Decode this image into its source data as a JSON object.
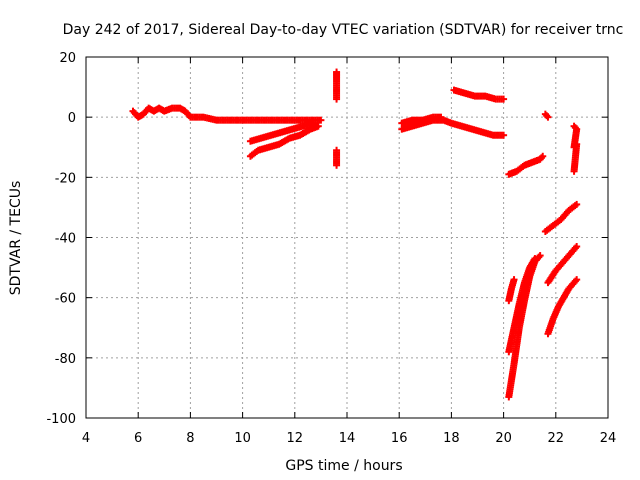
{
  "chart_data": {
    "type": "scatter",
    "title": "Day 242 of 2017, Sidereal Day-to-day VTEC variation (SDTVAR) for receiver trnc",
    "xlabel": "GPS time / hours",
    "ylabel": "SDTVAR / TECUs",
    "xlim": [
      4,
      24
    ],
    "ylim": [
      -100,
      20
    ],
    "xticks": [
      "4",
      "6",
      "8",
      "10",
      "12",
      "14",
      "16",
      "18",
      "20",
      "22",
      "24"
    ],
    "yticks": [
      "20",
      "0",
      "-20",
      "-40",
      "-60",
      "-80",
      "-100"
    ],
    "grid": true,
    "marker": "plus",
    "color": "#ff0000",
    "series": [
      {
        "points": [
          [
            5.8,
            2
          ],
          [
            6.0,
            0
          ],
          [
            6.2,
            1
          ],
          [
            6.4,
            3
          ],
          [
            6.6,
            2
          ],
          [
            6.8,
            3
          ],
          [
            7.0,
            2
          ],
          [
            7.3,
            3
          ],
          [
            7.6,
            3
          ],
          [
            7.8,
            2
          ],
          [
            8.0,
            0
          ],
          [
            8.5,
            0
          ],
          [
            9.0,
            -1
          ],
          [
            9.5,
            -1
          ],
          [
            10.0,
            -1
          ],
          [
            10.5,
            -1
          ],
          [
            11.0,
            -1
          ],
          [
            11.5,
            -1
          ],
          [
            12.0,
            -1
          ],
          [
            12.5,
            -1
          ],
          [
            13.0,
            -1
          ]
        ]
      },
      {
        "points": [
          [
            10.3,
            -13
          ],
          [
            10.6,
            -11
          ],
          [
            11.0,
            -10
          ],
          [
            11.4,
            -9
          ],
          [
            11.8,
            -7
          ],
          [
            12.2,
            -6
          ],
          [
            12.6,
            -4
          ],
          [
            12.9,
            -3
          ]
        ]
      },
      {
        "points": [
          [
            10.3,
            -8
          ],
          [
            10.7,
            -7
          ],
          [
            11.1,
            -6
          ],
          [
            11.5,
            -5
          ],
          [
            11.9,
            -4
          ],
          [
            12.3,
            -3
          ],
          [
            12.7,
            -2
          ]
        ]
      },
      {
        "points": [
          [
            13.6,
            15
          ],
          [
            13.6,
            13
          ],
          [
            13.6,
            6
          ],
          [
            13.6,
            -11
          ],
          [
            13.6,
            -16
          ]
        ]
      },
      {
        "points": [
          [
            16.1,
            -4
          ],
          [
            16.5,
            -3
          ],
          [
            16.9,
            -2
          ],
          [
            17.3,
            -1
          ],
          [
            17.7,
            -1
          ],
          [
            18.0,
            -2
          ],
          [
            18.4,
            -3
          ],
          [
            18.8,
            -4
          ],
          [
            19.2,
            -5
          ],
          [
            19.6,
            -6
          ],
          [
            20.0,
            -6
          ]
        ]
      },
      {
        "points": [
          [
            16.1,
            -2
          ],
          [
            16.5,
            -1
          ],
          [
            16.9,
            -1
          ],
          [
            17.3,
            0
          ],
          [
            17.6,
            0
          ]
        ]
      },
      {
        "points": [
          [
            18.1,
            9
          ],
          [
            18.5,
            8
          ],
          [
            18.9,
            7
          ],
          [
            19.3,
            7
          ],
          [
            19.7,
            6
          ],
          [
            20.0,
            6
          ]
        ]
      },
      {
        "points": [
          [
            20.2,
            -19
          ],
          [
            20.5,
            -18
          ],
          [
            20.8,
            -16
          ],
          [
            21.1,
            -15
          ],
          [
            21.4,
            -14
          ],
          [
            21.5,
            -13
          ]
        ]
      },
      {
        "points": [
          [
            21.6,
            1
          ],
          [
            21.7,
            0
          ]
        ]
      },
      {
        "points": [
          [
            22.7,
            -3
          ],
          [
            22.8,
            -4
          ],
          [
            22.7,
            -10
          ],
          [
            22.8,
            -9
          ],
          [
            22.7,
            -18
          ]
        ]
      },
      {
        "points": [
          [
            20.2,
            -61
          ],
          [
            20.3,
            -57
          ],
          [
            20.4,
            -54
          ]
        ]
      },
      {
        "points": [
          [
            20.2,
            -78
          ],
          [
            20.4,
            -70
          ],
          [
            20.6,
            -62
          ],
          [
            20.8,
            -55
          ],
          [
            21.0,
            -50
          ],
          [
            21.2,
            -47
          ]
        ]
      },
      {
        "points": [
          [
            20.2,
            -93
          ],
          [
            20.4,
            -82
          ],
          [
            20.6,
            -70
          ],
          [
            20.8,
            -61
          ],
          [
            21.0,
            -53
          ],
          [
            21.2,
            -48
          ],
          [
            21.4,
            -46
          ]
        ]
      },
      {
        "points": [
          [
            21.6,
            -38
          ],
          [
            21.9,
            -36
          ],
          [
            22.2,
            -34
          ],
          [
            22.5,
            -31
          ],
          [
            22.8,
            -29
          ]
        ]
      },
      {
        "points": [
          [
            21.7,
            -55
          ],
          [
            22.0,
            -51
          ],
          [
            22.3,
            -48
          ],
          [
            22.6,
            -45
          ],
          [
            22.8,
            -43
          ]
        ]
      },
      {
        "points": [
          [
            21.7,
            -72
          ],
          [
            21.9,
            -67
          ],
          [
            22.1,
            -63
          ],
          [
            22.3,
            -60
          ],
          [
            22.5,
            -57
          ],
          [
            22.7,
            -55
          ],
          [
            22.8,
            -54
          ]
        ]
      }
    ]
  }
}
